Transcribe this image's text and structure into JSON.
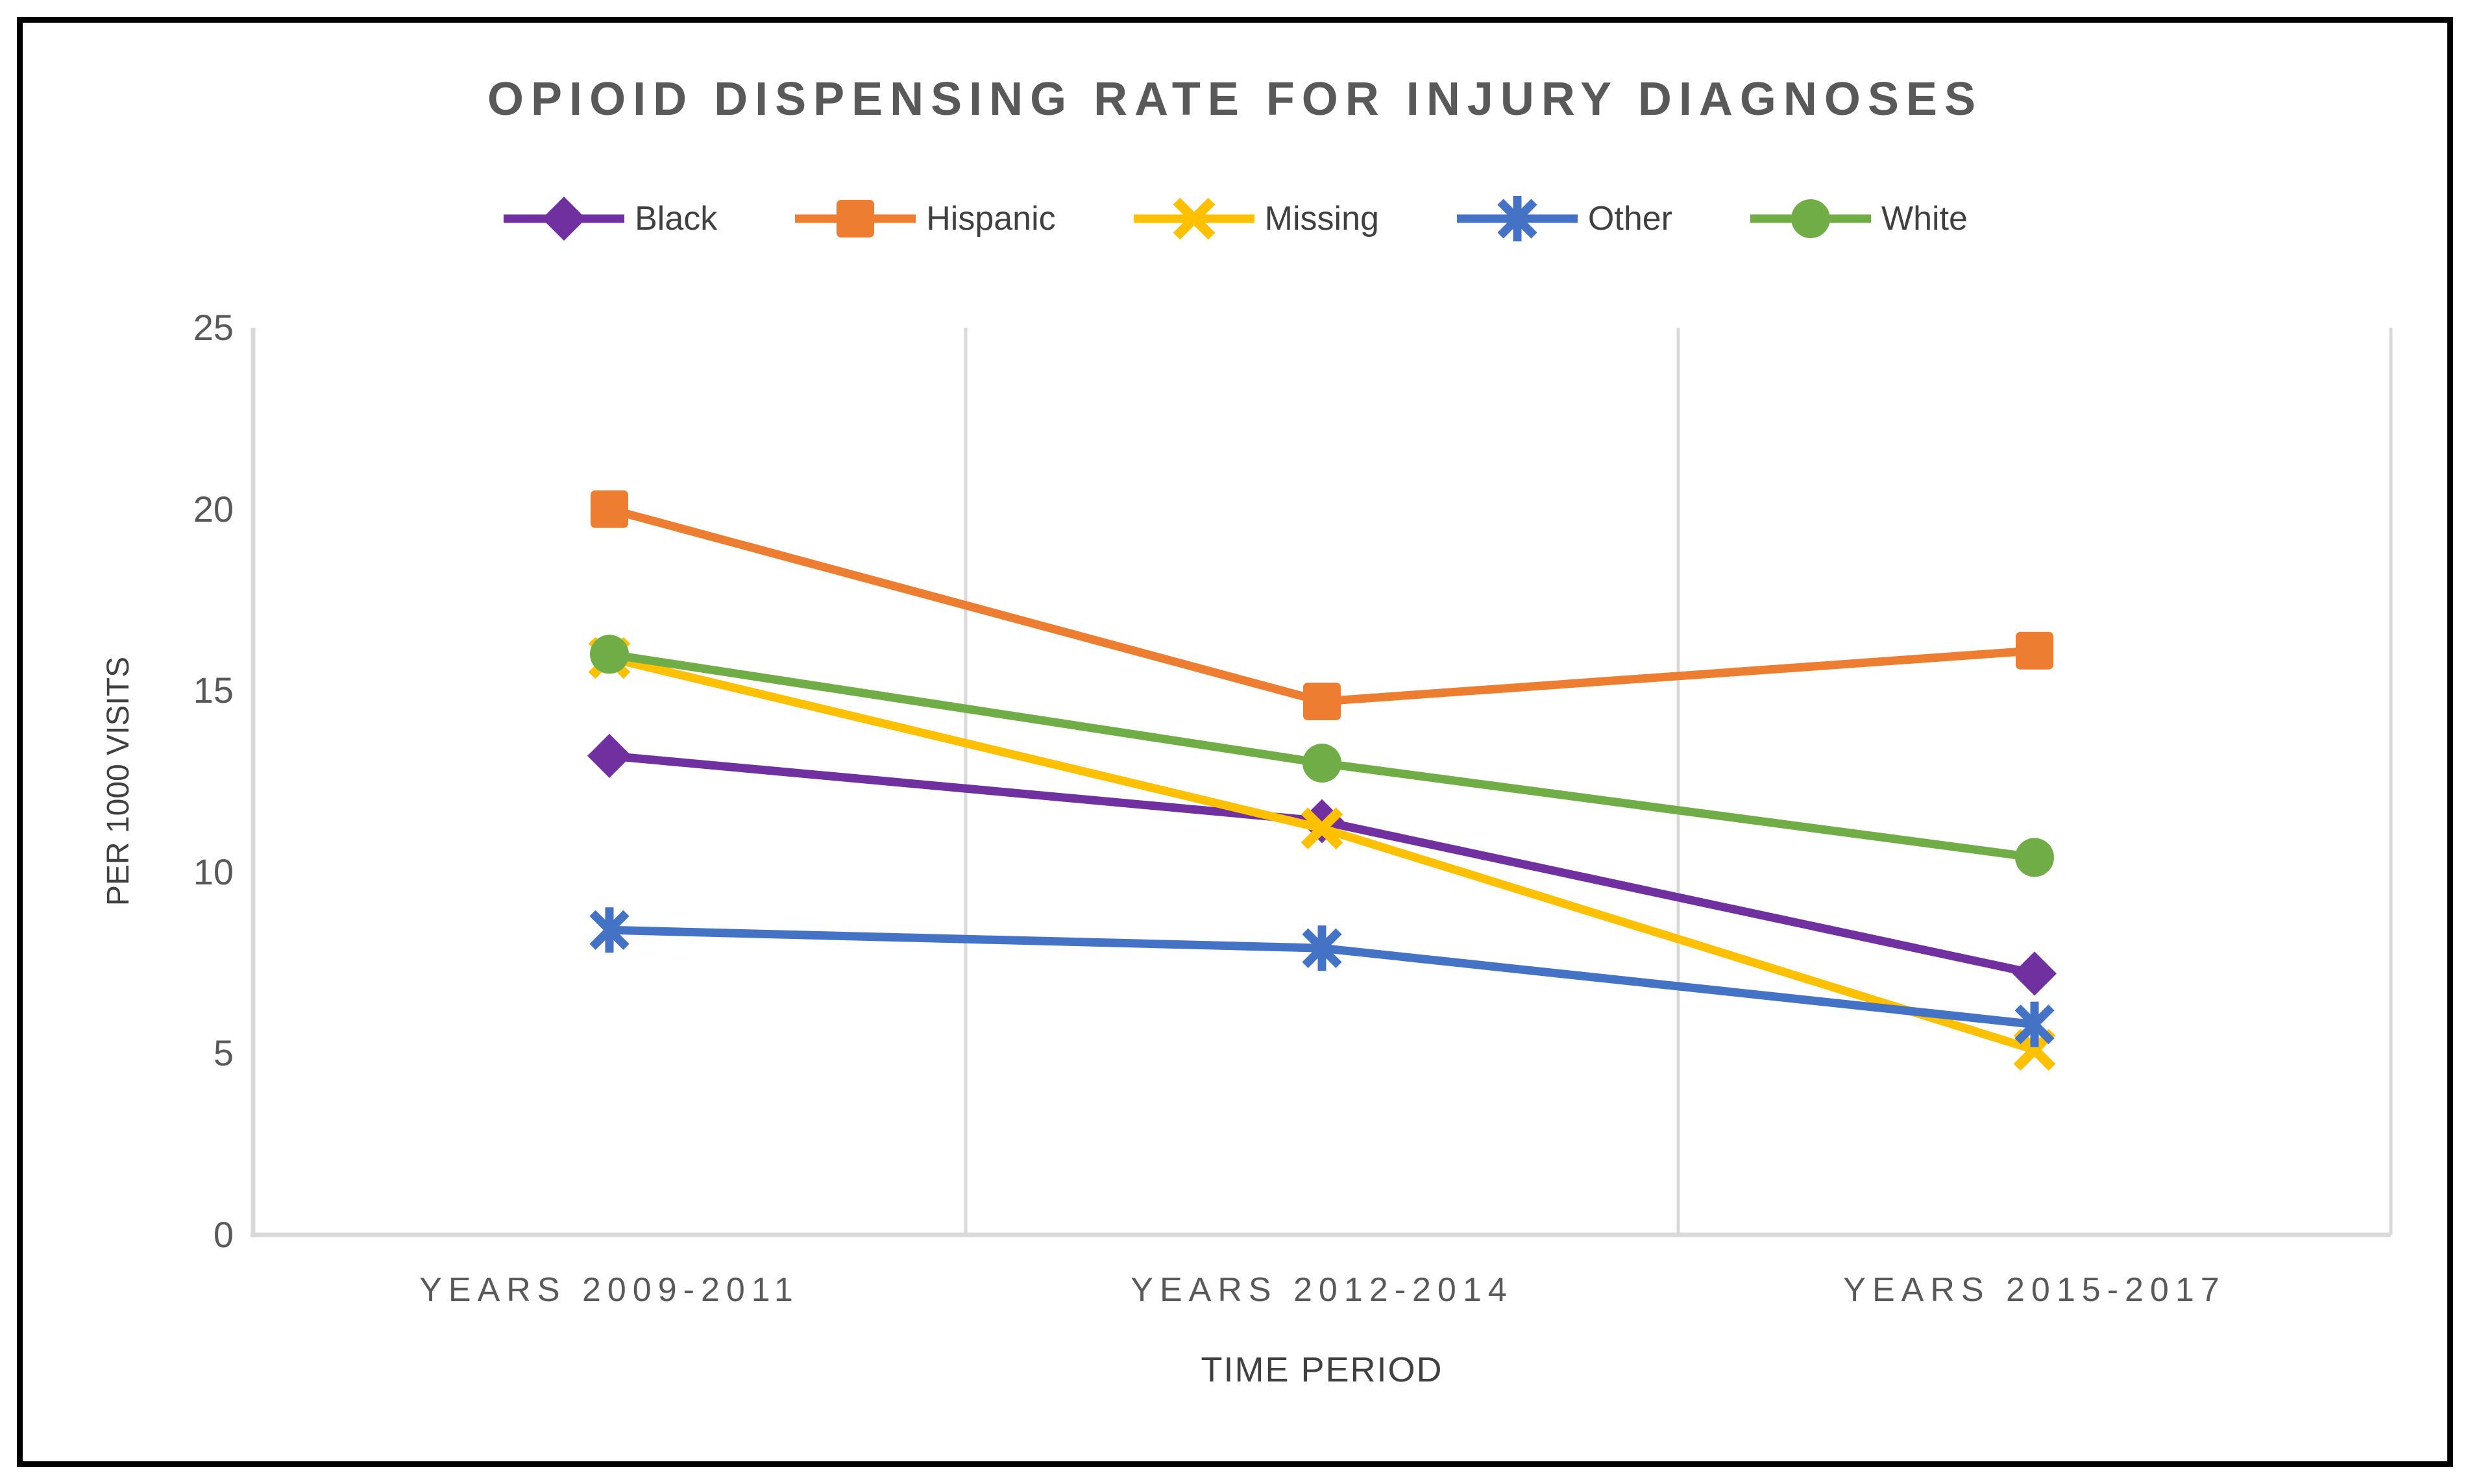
{
  "chart_data": {
    "type": "line",
    "title": "OPIOID DISPENSING RATE FOR INJURY DIAGNOSES",
    "xlabel": "TIME PERIOD",
    "ylabel": "PER 1000 VISITS",
    "categories": [
      "YEARS 2009-2011",
      "YEARS 2012-2014",
      "YEARS 2015-2017"
    ],
    "ylim": [
      0,
      25
    ],
    "yticks": [
      0,
      5,
      10,
      15,
      20,
      25
    ],
    "grid": "vertical-category-boundaries-only",
    "legend_position": "top",
    "series": [
      {
        "name": "Black",
        "color": "#7030A0",
        "marker": "diamond",
        "values": [
          13.2,
          11.4,
          7.2
        ]
      },
      {
        "name": "Hispanic",
        "color": "#ED7D31",
        "marker": "square",
        "values": [
          20.0,
          14.7,
          16.1
        ]
      },
      {
        "name": "Missing",
        "color": "#FFC000",
        "marker": "x",
        "values": [
          15.9,
          11.2,
          5.1
        ]
      },
      {
        "name": "Other",
        "color": "#4472C4",
        "marker": "asterisk",
        "values": [
          8.4,
          7.9,
          5.8
        ]
      },
      {
        "name": "White",
        "color": "#70AD47",
        "marker": "circle",
        "values": [
          16.0,
          13.0,
          10.4
        ]
      }
    ],
    "axis_color": "#D9D9D9",
    "text_color": "#595959"
  }
}
